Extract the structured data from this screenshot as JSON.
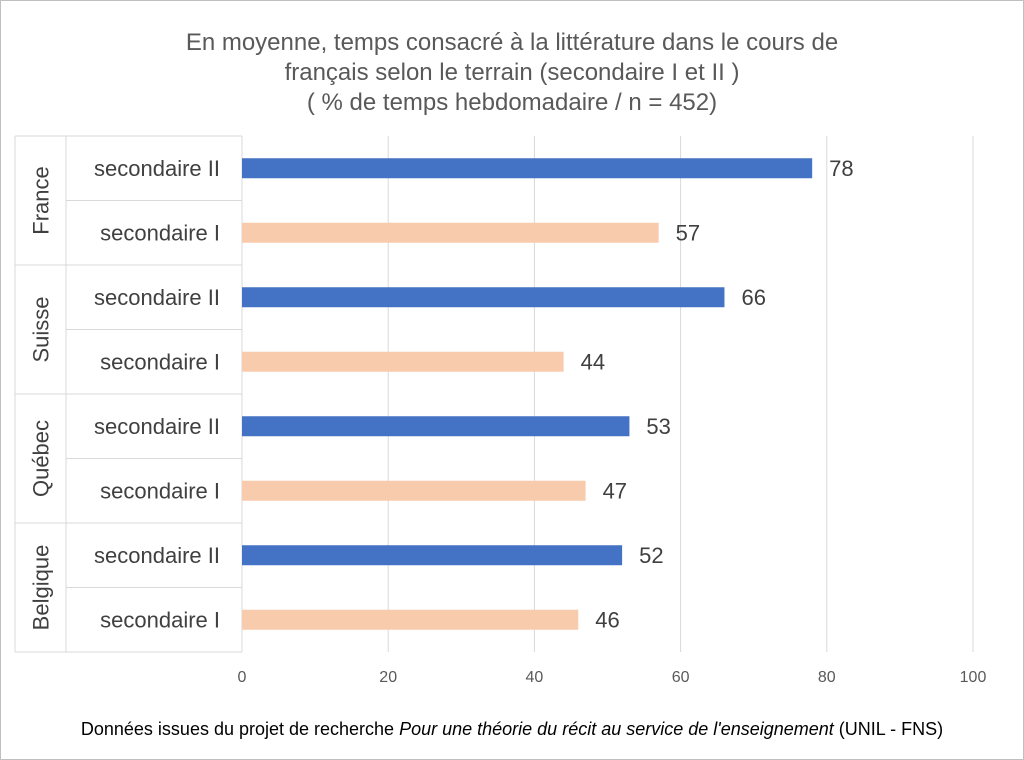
{
  "chart_data": {
    "type": "bar",
    "orientation": "horizontal",
    "title_lines": [
      "En moyenne, temps consacré à la littérature dans le cours de",
      "français selon le terrain (secondaire I et II )",
      "( % de temps hebdomadaire / n = 452)"
    ],
    "groups": [
      {
        "name": "France",
        "bars": [
          {
            "label": "secondaire II",
            "value": 78,
            "level": "II"
          },
          {
            "label": "secondaire I",
            "value": 57,
            "level": "I"
          }
        ]
      },
      {
        "name": "Suisse",
        "bars": [
          {
            "label": "secondaire II",
            "value": 66,
            "level": "II"
          },
          {
            "label": "secondaire I",
            "value": 44,
            "level": "I"
          }
        ]
      },
      {
        "name": "Québec",
        "bars": [
          {
            "label": "secondaire II",
            "value": 53,
            "level": "II"
          },
          {
            "label": "secondaire I",
            "value": 47,
            "level": "I"
          }
        ]
      },
      {
        "name": "Belgique",
        "bars": [
          {
            "label": "secondaire II",
            "value": 52,
            "level": "II"
          },
          {
            "label": "secondaire I",
            "value": 46,
            "level": "I"
          }
        ]
      }
    ],
    "xlim": [
      0,
      100
    ],
    "xticks": [
      0,
      20,
      40,
      60,
      80,
      100
    ],
    "grid": true,
    "colors": {
      "II": "#4472C4",
      "I": "#F8CBAD"
    }
  },
  "footnote": {
    "prefix": "Données issues du projet de recherche ",
    "italic": "Pour une théorie du récit au service de l'enseignement",
    "suffix": " (UNIL - FNS)"
  }
}
